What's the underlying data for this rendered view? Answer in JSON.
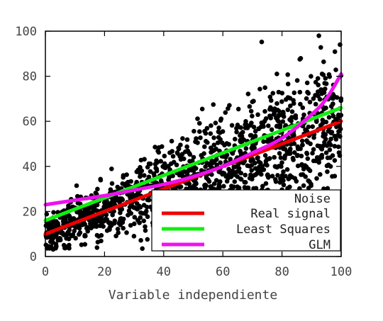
{
  "chart_data": {
    "type": "scatter",
    "xlabel": "Variable independiente",
    "ylabel": "",
    "title": "",
    "xlim": [
      0,
      100
    ],
    "ylim": [
      0,
      100
    ],
    "x_ticks": [
      "0",
      "20",
      "40",
      "60",
      "80",
      "100"
    ],
    "y_ticks": [
      "0",
      "20",
      "40",
      "60",
      "80",
      "100"
    ],
    "grid": false,
    "legend_position": "bottom-right",
    "noise": {
      "name": "Noise",
      "color": "#000000",
      "point_count": 1400,
      "model": "y = 10 + 0.5*x + noise (spread ~ 4 + 0.12*x)"
    },
    "series": [
      {
        "name": "Real signal",
        "color": "#ee0000",
        "x": [
          0,
          100
        ],
        "y": [
          10,
          60
        ]
      },
      {
        "name": "Least Squares",
        "color": "#11ee11",
        "x": [
          0,
          100
        ],
        "y": [
          16,
          66
        ]
      },
      {
        "name": "GLM",
        "color": "#ee11ee",
        "x": [
          0,
          10,
          20,
          30,
          40,
          50,
          60,
          70,
          80,
          90,
          95,
          100
        ],
        "y": [
          23,
          25,
          27,
          29.5,
          32,
          35.5,
          40,
          46,
          52.5,
          63,
          70,
          81
        ]
      }
    ],
    "legend": [
      "Noise",
      "Real signal",
      "Least Squares",
      "GLM"
    ]
  }
}
